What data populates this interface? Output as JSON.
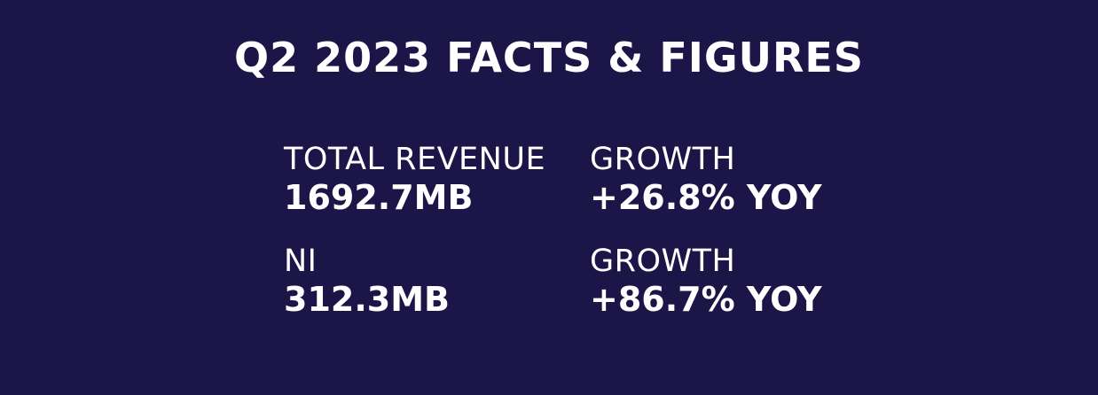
{
  "header": {
    "title": "Q2 2023 FACTS & FIGURES"
  },
  "facts": [
    {
      "label": "TOTAL REVENUE",
      "value": "1692.7MB",
      "growth_label": "GROWTH",
      "growth": "+26.8% YOY"
    },
    {
      "label": "NI",
      "value": "312.3MB",
      "growth_label": "GROWTH",
      "growth": "+86.7% YOY"
    }
  ]
}
